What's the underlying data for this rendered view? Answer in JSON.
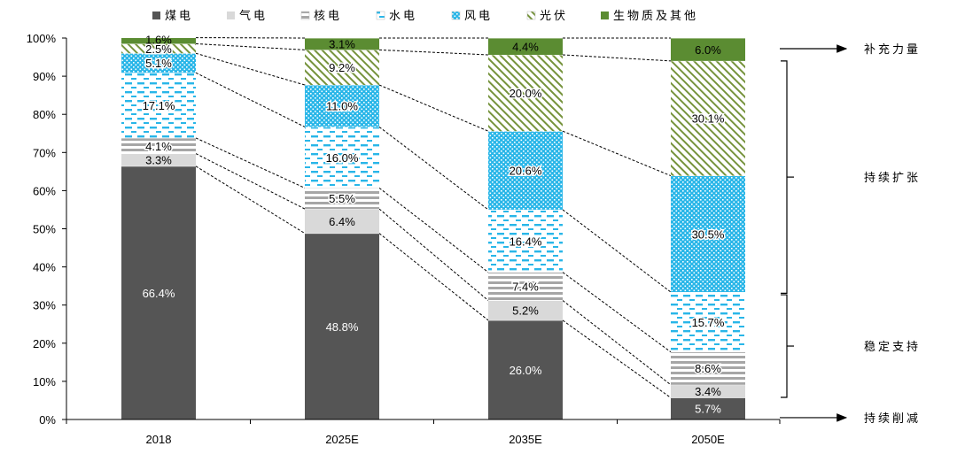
{
  "chart_data": {
    "type": "stacked-bar",
    "title": "",
    "xlabel": "",
    "ylabel": "",
    "ylim": [
      0,
      100
    ],
    "yticks": [
      "0%",
      "10%",
      "20%",
      "30%",
      "40%",
      "50%",
      "60%",
      "70%",
      "80%",
      "90%",
      "100%"
    ],
    "categories": [
      "2018",
      "2025E",
      "2035E",
      "2050E"
    ],
    "series": [
      {
        "key": "coal",
        "name": "煤电",
        "values": [
          66.4,
          48.8,
          26.0,
          5.7
        ],
        "labels": [
          "66.4%",
          "48.8%",
          "26.0%",
          "5.7%"
        ],
        "color": "#555555",
        "pattern": "solid"
      },
      {
        "key": "gas",
        "name": "气电",
        "values": [
          3.3,
          6.4,
          5.2,
          3.4
        ],
        "labels": [
          "3.3%",
          "6.4%",
          "5.2%",
          "3.4%"
        ],
        "color": "#d9d9d9",
        "pattern": "solid"
      },
      {
        "key": "nuclear",
        "name": "核电",
        "values": [
          4.1,
          5.5,
          7.4,
          8.6
        ],
        "labels": [
          "4.1%",
          "5.5%",
          "7.4%",
          "8.6%"
        ],
        "color": "#a6a6a6",
        "pattern": "hstripe"
      },
      {
        "key": "hydro",
        "name": "水电",
        "values": [
          17.1,
          16.0,
          16.4,
          15.7
        ],
        "labels": [
          "17.1%",
          "16.0%",
          "16.4%",
          "15.7%"
        ],
        "color": "#29b6e8",
        "pattern": "dash"
      },
      {
        "key": "wind",
        "name": "风电",
        "values": [
          5.1,
          11.0,
          20.6,
          30.5
        ],
        "labels": [
          "5.1%",
          "11.0%",
          "20.6%",
          "30.5%"
        ],
        "color": "#29b6e8",
        "pattern": "dots"
      },
      {
        "key": "solar",
        "name": "光伏",
        "values": [
          2.5,
          9.2,
          20.0,
          30.1
        ],
        "labels": [
          "2.5%",
          "9.2%",
          "20.0%",
          "30.1%"
        ],
        "color": "#76933c",
        "pattern": "diag"
      },
      {
        "key": "bio",
        "name": "生物质及其他",
        "values": [
          1.6,
          3.1,
          4.4,
          6.0
        ],
        "labels": [
          "1.6%",
          "3.1%",
          "4.4%",
          "6.0%"
        ],
        "color": "#5b8c32",
        "pattern": "solid"
      }
    ],
    "annotations": [
      {
        "key": "supplement",
        "text": "补充力量"
      },
      {
        "key": "expand",
        "text": "持续扩张"
      },
      {
        "key": "stable",
        "text": "稳定支持"
      },
      {
        "key": "reduce",
        "text": "持续削减"
      }
    ],
    "legend_position": "top"
  }
}
